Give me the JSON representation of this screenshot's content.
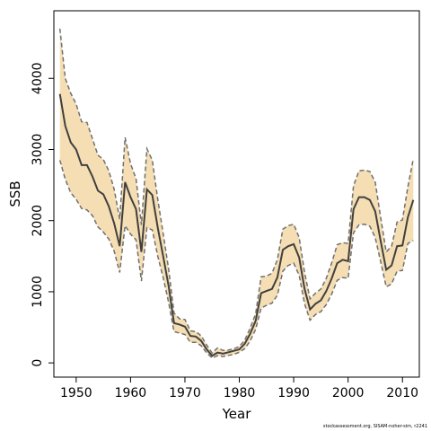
{
  "chart_data": {
    "type": "line",
    "title": "",
    "xlabel": "Year",
    "ylabel": "SSB",
    "xlim": [
      1945.9,
      2013.1
    ],
    "ylim": [
      -200,
      4950
    ],
    "xticks": [
      1950,
      1960,
      1970,
      1980,
      1990,
      2000,
      2010
    ],
    "yticks": [
      0,
      1000,
      2000,
      3000,
      4000
    ],
    "grid": false,
    "legend": "none",
    "colors": {
      "band": "#f5deb3",
      "line": "#404040",
      "bound": "#707070",
      "axis": "#000000"
    },
    "x": [
      1947,
      1948,
      1949,
      1950,
      1951,
      1952,
      1953,
      1954,
      1955,
      1956,
      1957,
      1958,
      1959,
      1960,
      1961,
      1962,
      1963,
      1964,
      1965,
      1966,
      1967,
      1968,
      1969,
      1970,
      1971,
      1972,
      1973,
      1974,
      1975,
      1976,
      1977,
      1978,
      1979,
      1980,
      1981,
      1982,
      1983,
      1984,
      1985,
      1986,
      1987,
      1988,
      1989,
      1990,
      1991,
      1992,
      1993,
      1994,
      1995,
      1996,
      1997,
      1998,
      1999,
      2000,
      2001,
      2002,
      2003,
      2004,
      2005,
      2006,
      2007,
      2008,
      2009,
      2010,
      2011,
      2012
    ],
    "series": [
      {
        "role": "estimate",
        "values": [
          3780,
          3330,
          3100,
          3000,
          2780,
          2780,
          2620,
          2420,
          2370,
          2200,
          1960,
          1640,
          2540,
          2330,
          2160,
          1560,
          2440,
          2360,
          1900,
          1500,
          1080,
          560,
          540,
          510,
          380,
          370,
          310,
          190,
          100,
          145,
          130,
          150,
          170,
          190,
          270,
          410,
          590,
          980,
          1010,
          1040,
          1200,
          1590,
          1640,
          1670,
          1480,
          1040,
          750,
          830,
          880,
          1010,
          1190,
          1400,
          1450,
          1430,
          2160,
          2330,
          2330,
          2290,
          2130,
          1710,
          1310,
          1370,
          1640,
          1650,
          2050,
          2290
        ]
      },
      {
        "role": "upper",
        "values": [
          4700,
          4000,
          3790,
          3640,
          3390,
          3380,
          3150,
          2920,
          2860,
          2700,
          2440,
          2020,
          3170,
          2800,
          2590,
          1940,
          3010,
          2850,
          2300,
          1820,
          1320,
          700,
          620,
          610,
          450,
          440,
          380,
          250,
          140,
          210,
          175,
          180,
          200,
          230,
          320,
          490,
          690,
          1210,
          1220,
          1260,
          1450,
          1880,
          1930,
          1950,
          1760,
          1270,
          900,
          980,
          1040,
          1190,
          1410,
          1660,
          1690,
          1680,
          2490,
          2700,
          2710,
          2690,
          2540,
          2040,
          1560,
          1640,
          1980,
          2010,
          2480,
          2870
        ]
      },
      {
        "role": "lower",
        "values": [
          2850,
          2580,
          2390,
          2300,
          2170,
          2150,
          2070,
          1910,
          1840,
          1740,
          1570,
          1270,
          1930,
          1810,
          1730,
          1150,
          1900,
          1870,
          1500,
          1200,
          850,
          440,
          420,
          400,
          290,
          290,
          240,
          140,
          70,
          100,
          90,
          105,
          120,
          150,
          200,
          310,
          470,
          770,
          810,
          840,
          950,
          1290,
          1370,
          1400,
          1230,
          830,
          600,
          680,
          720,
          820,
          970,
          1160,
          1200,
          1190,
          1830,
          1940,
          1950,
          1920,
          1760,
          1420,
          1070,
          1110,
          1290,
          1300,
          1680,
          1720
        ]
      }
    ]
  },
  "footer": {
    "credit": "stockassessment.org, SISAM-noher-sim, r2241"
  }
}
